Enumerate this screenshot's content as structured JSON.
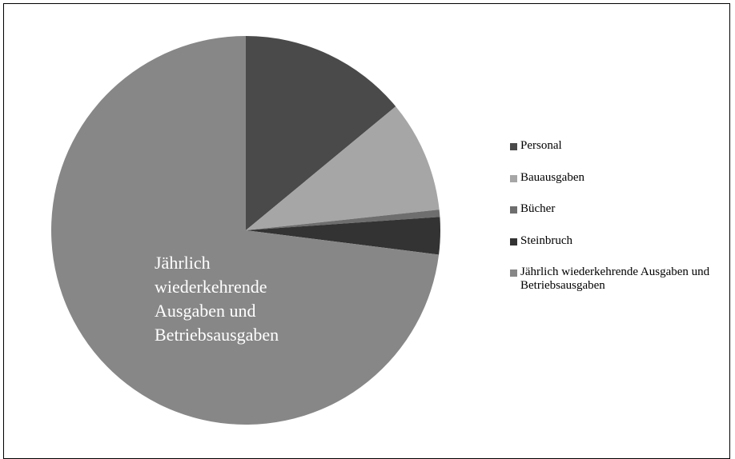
{
  "chart_data": {
    "type": "pie",
    "categories": [
      "Personal",
      "Bauausgaben",
      "Bücher",
      "Steinbruch",
      "Jährlich wiederkehrende Ausgaben und Betriebsausgaben"
    ],
    "values": [
      14,
      9.3,
      0.6,
      3.1,
      73
    ],
    "colors": [
      "#4a4a4a",
      "#a6a6a6",
      "#6e6e6e",
      "#333333",
      "#878787"
    ],
    "inside_label": "Jährlich wiederkehrende Ausgaben und Betriebsausgaben",
    "legend": "right"
  }
}
